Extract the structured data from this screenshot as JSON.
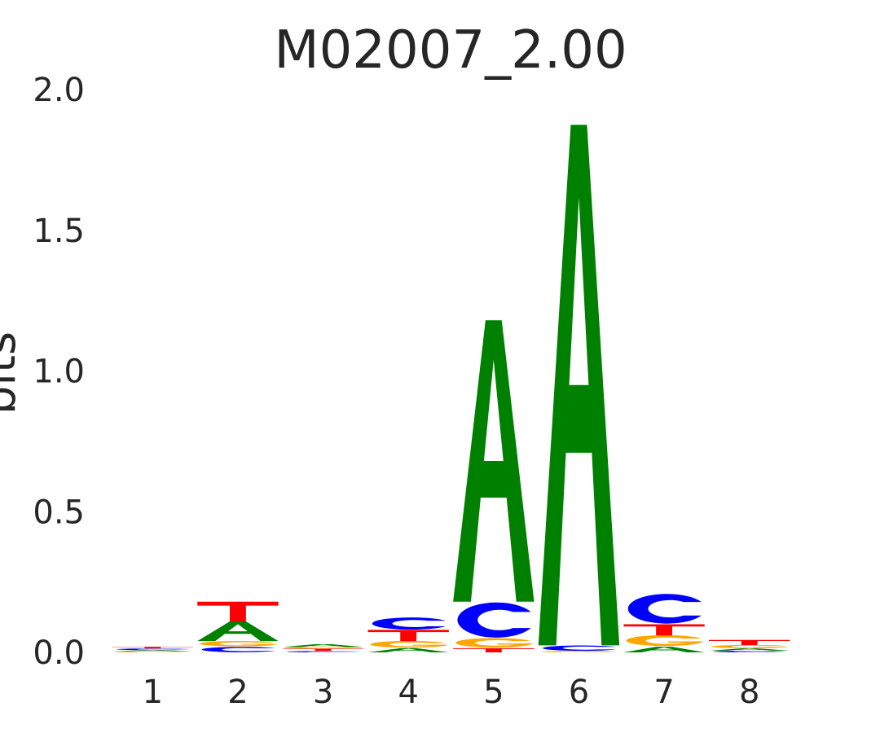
{
  "chart_data": {
    "type": "sequence-logo",
    "title": "M02007_2.00",
    "xlabel": "",
    "ylabel": "bits",
    "ylim": [
      0,
      2.0
    ],
    "yticks": [
      "0.0",
      "0.5",
      "1.0",
      "1.5",
      "2.0"
    ],
    "grid": false,
    "positions": [
      "1",
      "2",
      "3",
      "4",
      "5",
      "6",
      "7",
      "8"
    ],
    "colors": {
      "A": "#008000",
      "C": "#0000ff",
      "G": "#ffa500",
      "T": "#ff0000"
    },
    "stacks": [
      [
        {
          "letter": "G",
          "bits": 0.004
        },
        {
          "letter": "A",
          "bits": 0.004
        },
        {
          "letter": "C",
          "bits": 0.006
        },
        {
          "letter": "T",
          "bits": 0.006
        }
      ],
      [
        {
          "letter": "C",
          "bits": 0.02
        },
        {
          "letter": "G",
          "bits": 0.02
        },
        {
          "letter": "A",
          "bits": 0.07
        },
        {
          "letter": "T",
          "bits": 0.07
        }
      ],
      [
        {
          "letter": "C",
          "bits": 0.005
        },
        {
          "letter": "T",
          "bits": 0.008
        },
        {
          "letter": "G",
          "bits": 0.006
        },
        {
          "letter": "A",
          "bits": 0.01
        }
      ],
      [
        {
          "letter": "A",
          "bits": 0.015
        },
        {
          "letter": "G",
          "bits": 0.025
        },
        {
          "letter": "T",
          "bits": 0.04
        },
        {
          "letter": "C",
          "bits": 0.045
        }
      ],
      [
        {
          "letter": "T",
          "bits": 0.015
        },
        {
          "letter": "G",
          "bits": 0.035
        },
        {
          "letter": "C",
          "bits": 0.13
        },
        {
          "letter": "A",
          "bits": 1.0
        }
      ],
      [
        {
          "letter": "G",
          "bits": 0.005
        },
        {
          "letter": "C",
          "bits": 0.02
        },
        {
          "letter": "A",
          "bits": 1.85
        }
      ],
      [
        {
          "letter": "A",
          "bits": 0.02
        },
        {
          "letter": "G",
          "bits": 0.04
        },
        {
          "letter": "T",
          "bits": 0.04
        },
        {
          "letter": "C",
          "bits": 0.11
        }
      ],
      [
        {
          "letter": "C",
          "bits": 0.006
        },
        {
          "letter": "A",
          "bits": 0.008
        },
        {
          "letter": "G",
          "bits": 0.012
        },
        {
          "letter": "T",
          "bits": 0.018
        }
      ]
    ]
  }
}
